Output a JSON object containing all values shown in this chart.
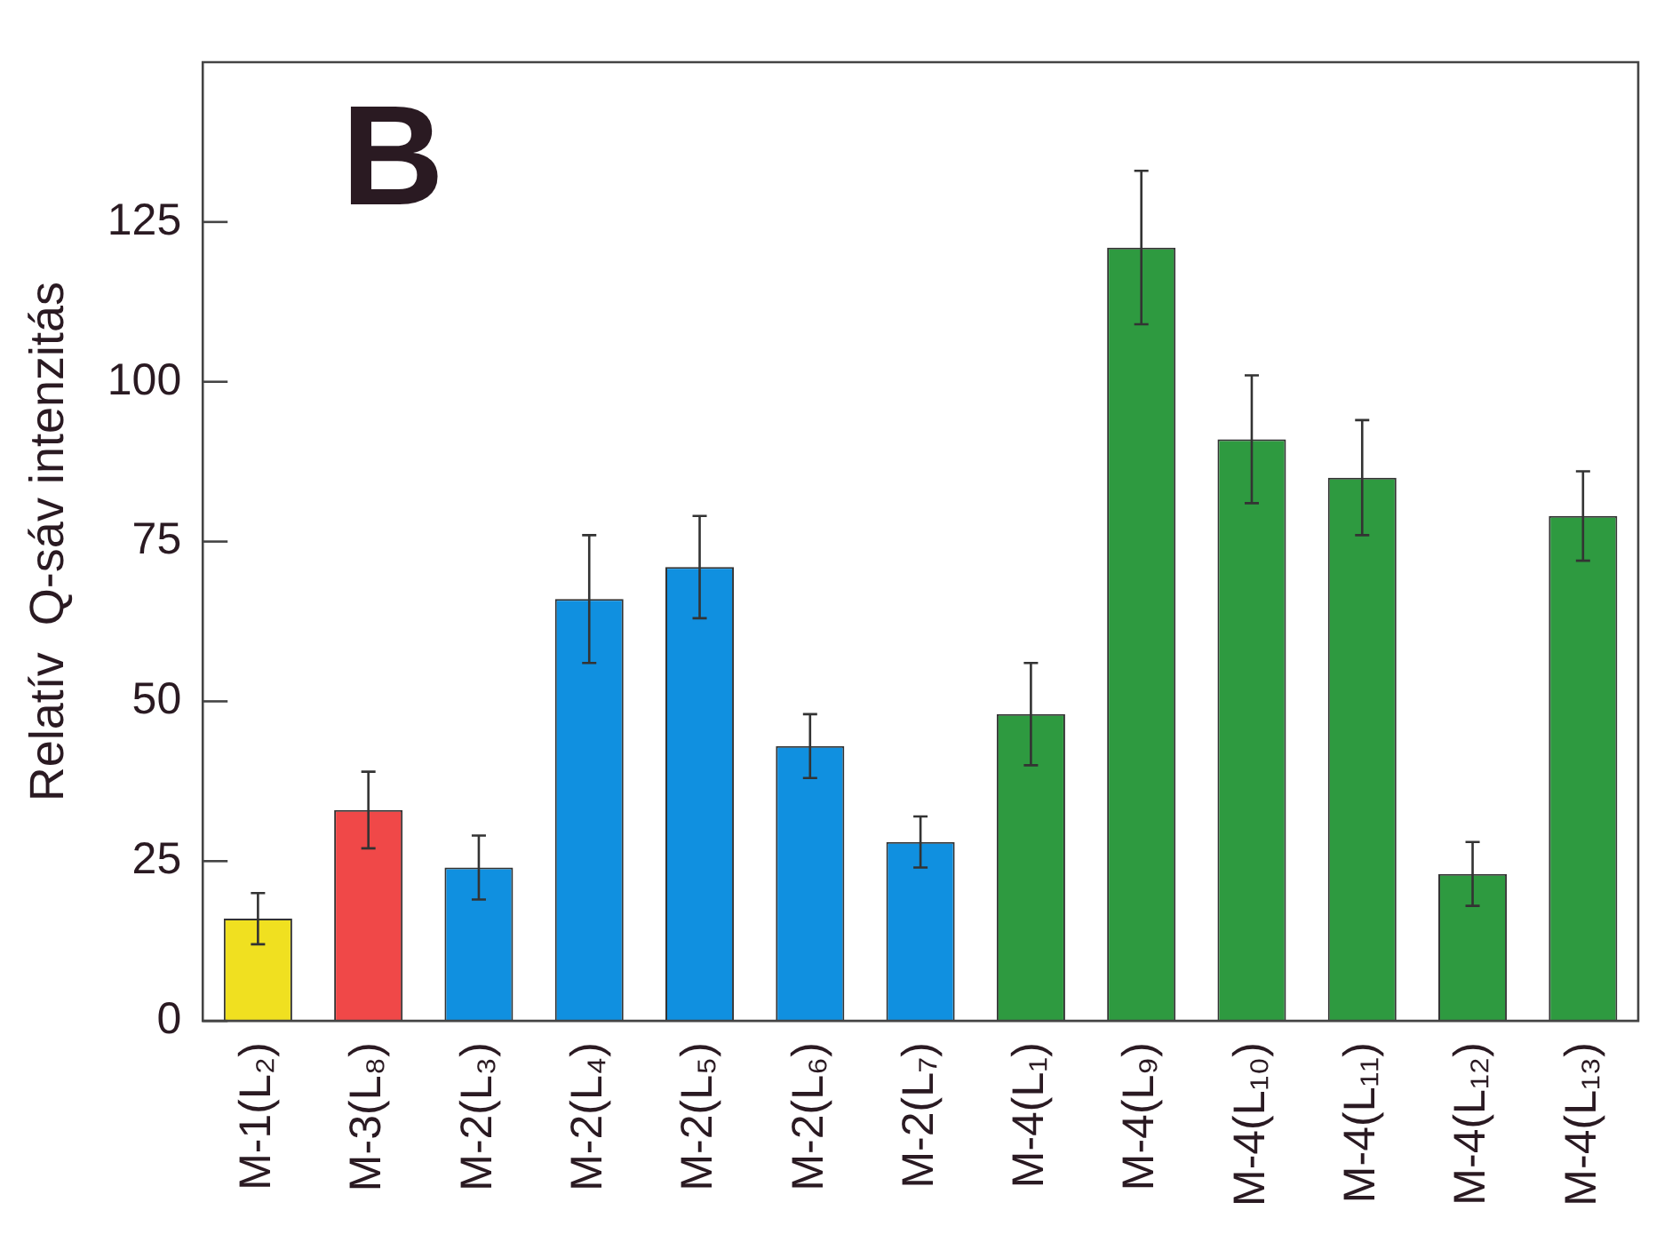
{
  "chart_data": {
    "type": "bar",
    "ylabel": "Relatív  Q-sáv intenzitás",
    "annotations": [
      "B"
    ],
    "categories": [
      "M-1(L₂)",
      "M-3(L₈)",
      "M-2(L₃)",
      "M-2(L₄)",
      "M-2(L₅)",
      "M-2(L₆)",
      "M-2(L₇)",
      "M-4(L₁)",
      "M-4(L₉)",
      "M-4(L₁₀)",
      "M-4(L₁₁)",
      "M-4(L₁₂)",
      "M-4(L₁₃)"
    ],
    "values": [
      16,
      33,
      24,
      66,
      71,
      43,
      28,
      48,
      121,
      91,
      85,
      23,
      79
    ],
    "errors": [
      4,
      6,
      5,
      10,
      8,
      5,
      4,
      8,
      12,
      10,
      9,
      5,
      7
    ],
    "colors": [
      "#f0e020",
      "#f04848",
      "#1090e0",
      "#1090e0",
      "#1090e0",
      "#1090e0",
      "#1090e0",
      "#2e9a40",
      "#2e9a40",
      "#2e9a40",
      "#2e9a40",
      "#2e9a40",
      "#2e9a40"
    ],
    "ylim": [
      0,
      150
    ],
    "yticks": [
      0,
      25,
      50,
      75,
      100,
      125
    ],
    "grid": false,
    "legend": false
  }
}
